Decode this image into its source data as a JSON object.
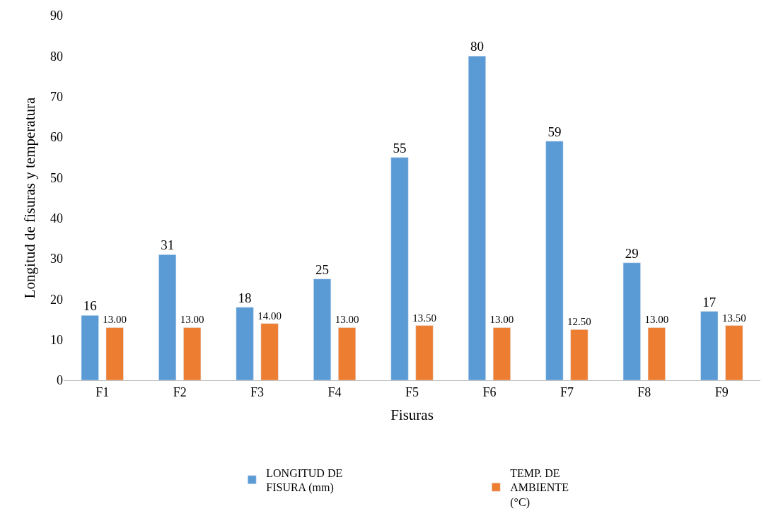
{
  "chart_data": {
    "type": "bar",
    "xlabel": "Fisuras",
    "ylabel": "Longitud de fisuras y temperatura",
    "categories": [
      "F1",
      "F2",
      "F3",
      "F4",
      "F5",
      "F6",
      "F7",
      "F8",
      "F9"
    ],
    "series": [
      {
        "name": "LONGITUD DE FISURA (mm)",
        "color": "#5b9bd5",
        "values": [
          16,
          31,
          18,
          25,
          55,
          80,
          59,
          29,
          17
        ],
        "value_labels": [
          "16",
          "31",
          "18",
          "25",
          "55",
          "80",
          "59",
          "29",
          "17"
        ]
      },
      {
        "name": "TEMP. DE AMBIENTE (°C)",
        "color": "#ed7d31",
        "values": [
          13,
          13,
          14,
          13,
          13.5,
          13,
          12.5,
          13,
          13.5
        ],
        "value_labels": [
          "13.00",
          "13.00",
          "14.00",
          "13.00",
          "13.50",
          "13.00",
          "12.50",
          "13.00",
          "13.50"
        ]
      }
    ],
    "ylim": [
      0,
      90
    ],
    "yticks": [
      0,
      10,
      20,
      30,
      40,
      50,
      60,
      70,
      80,
      90
    ],
    "legend": "bottom"
  }
}
